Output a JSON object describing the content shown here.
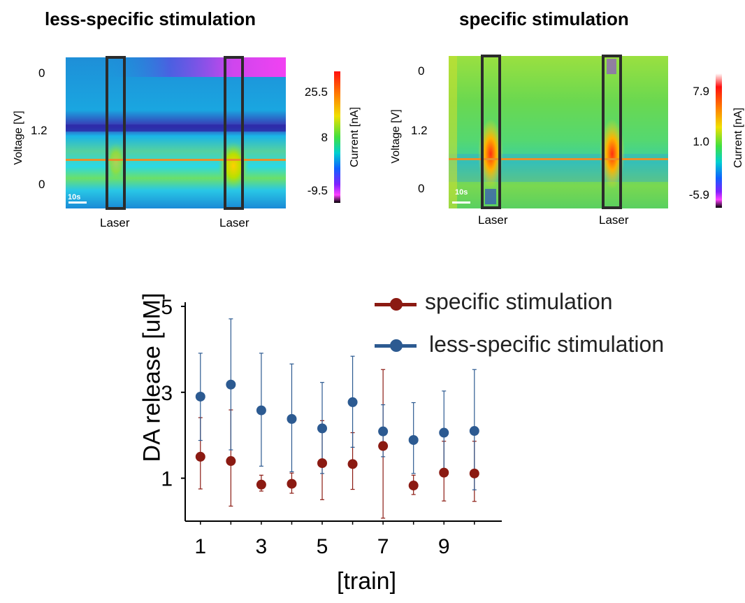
{
  "colors": {
    "specific": "#8b1a12",
    "less_specific": "#2c5a91",
    "orange_line": "#e8902a",
    "laser_box": "#2b2b2b"
  },
  "panels": [
    {
      "title": "less-specific stimulation",
      "voltage_ticks": [
        "0",
        "1.2",
        "0"
      ],
      "ylabel": "Voltage [V]",
      "colorbar_label": "Current [nA]",
      "colorbar_ticks": [
        "25.5",
        "8",
        "-9.5"
      ],
      "laser_labels": [
        "Laser",
        "Laser"
      ],
      "scale_label": "10s"
    },
    {
      "title": "specific stimulation",
      "voltage_ticks": [
        "0",
        "1.2",
        "0"
      ],
      "ylabel": "Voltage [V]",
      "colorbar_label": "Current [nA]",
      "colorbar_ticks": [
        "7.9",
        "1.0",
        "-5.9"
      ],
      "laser_labels": [
        "Laser",
        "Laser"
      ],
      "scale_label": "10s"
    }
  ],
  "chart_data": {
    "type": "scatter",
    "xlabel": "[train]",
    "ylabel": "DA release [uM]",
    "xticks": [
      "1",
      "3",
      "5",
      "7",
      "9"
    ],
    "yticks": [
      "1",
      "3",
      "5"
    ],
    "xlim": [
      0.5,
      10.9
    ],
    "ylim": [
      0,
      5
    ],
    "grid": false,
    "legend_position": "top-right",
    "x": [
      1,
      2,
      3,
      4,
      5,
      6,
      7,
      8,
      9,
      10
    ],
    "series": [
      {
        "name": "specific stimulation",
        "values": [
          1.5,
          1.4,
          0.85,
          0.87,
          1.35,
          1.33,
          1.75,
          0.83,
          1.13,
          1.11
        ],
        "error_low": [
          0.75,
          0.35,
          0.7,
          0.65,
          0.5,
          0.74,
          0.07,
          0.62,
          0.47,
          0.46
        ],
        "error_high": [
          2.41,
          2.59,
          1.07,
          1.12,
          2.34,
          2.06,
          3.53,
          1.07,
          1.86,
          1.86
        ]
      },
      {
        "name": "less-specific stimulation",
        "values": [
          2.9,
          3.18,
          2.58,
          2.38,
          2.16,
          2.77,
          2.09,
          1.89,
          2.06,
          2.1
        ],
        "error_low": [
          1.88,
          1.66,
          1.28,
          1.15,
          1.11,
          1.72,
          1.5,
          1.11,
          1.08,
          0.73
        ],
        "error_high": [
          3.91,
          4.71,
          3.91,
          3.66,
          3.23,
          3.84,
          2.71,
          2.76,
          3.03,
          3.53
        ]
      }
    ]
  }
}
